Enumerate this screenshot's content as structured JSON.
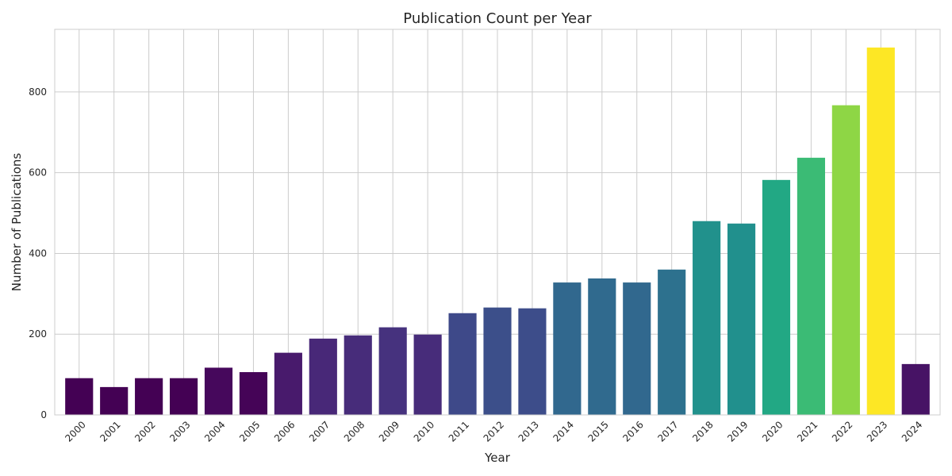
{
  "chart_data": {
    "type": "bar",
    "title": "Publication Count per Year",
    "xlabel": "Year",
    "ylabel": "Number of Publications",
    "categories": [
      "2000",
      "2001",
      "2002",
      "2003",
      "2004",
      "2005",
      "2006",
      "2007",
      "2008",
      "2009",
      "2010",
      "2011",
      "2012",
      "2013",
      "2014",
      "2015",
      "2016",
      "2017",
      "2018",
      "2019",
      "2020",
      "2021",
      "2022",
      "2023",
      "2024"
    ],
    "values": [
      91,
      69,
      91,
      91,
      117,
      106,
      154,
      189,
      197,
      217,
      199,
      252,
      266,
      264,
      328,
      338,
      328,
      360,
      480,
      474,
      582,
      637,
      767,
      910,
      126
    ],
    "colors": [
      "#440154",
      "#440154",
      "#440154",
      "#440154",
      "#46085c",
      "#450457",
      "#481a6c",
      "#482878",
      "#472c7a",
      "#46327e",
      "#472c7a",
      "#3e4989",
      "#3c4f8a",
      "#3d4d8a",
      "#31688e",
      "#306a8e",
      "#31688e",
      "#2d718e",
      "#21918c",
      "#21908d",
      "#22a884",
      "#3bbb75",
      "#8ed645",
      "#fde725",
      "#471365"
    ],
    "yticks": [
      0,
      200,
      400,
      600,
      800
    ],
    "ylim": [
      0,
      955
    ],
    "grid": true,
    "legend": "none"
  }
}
